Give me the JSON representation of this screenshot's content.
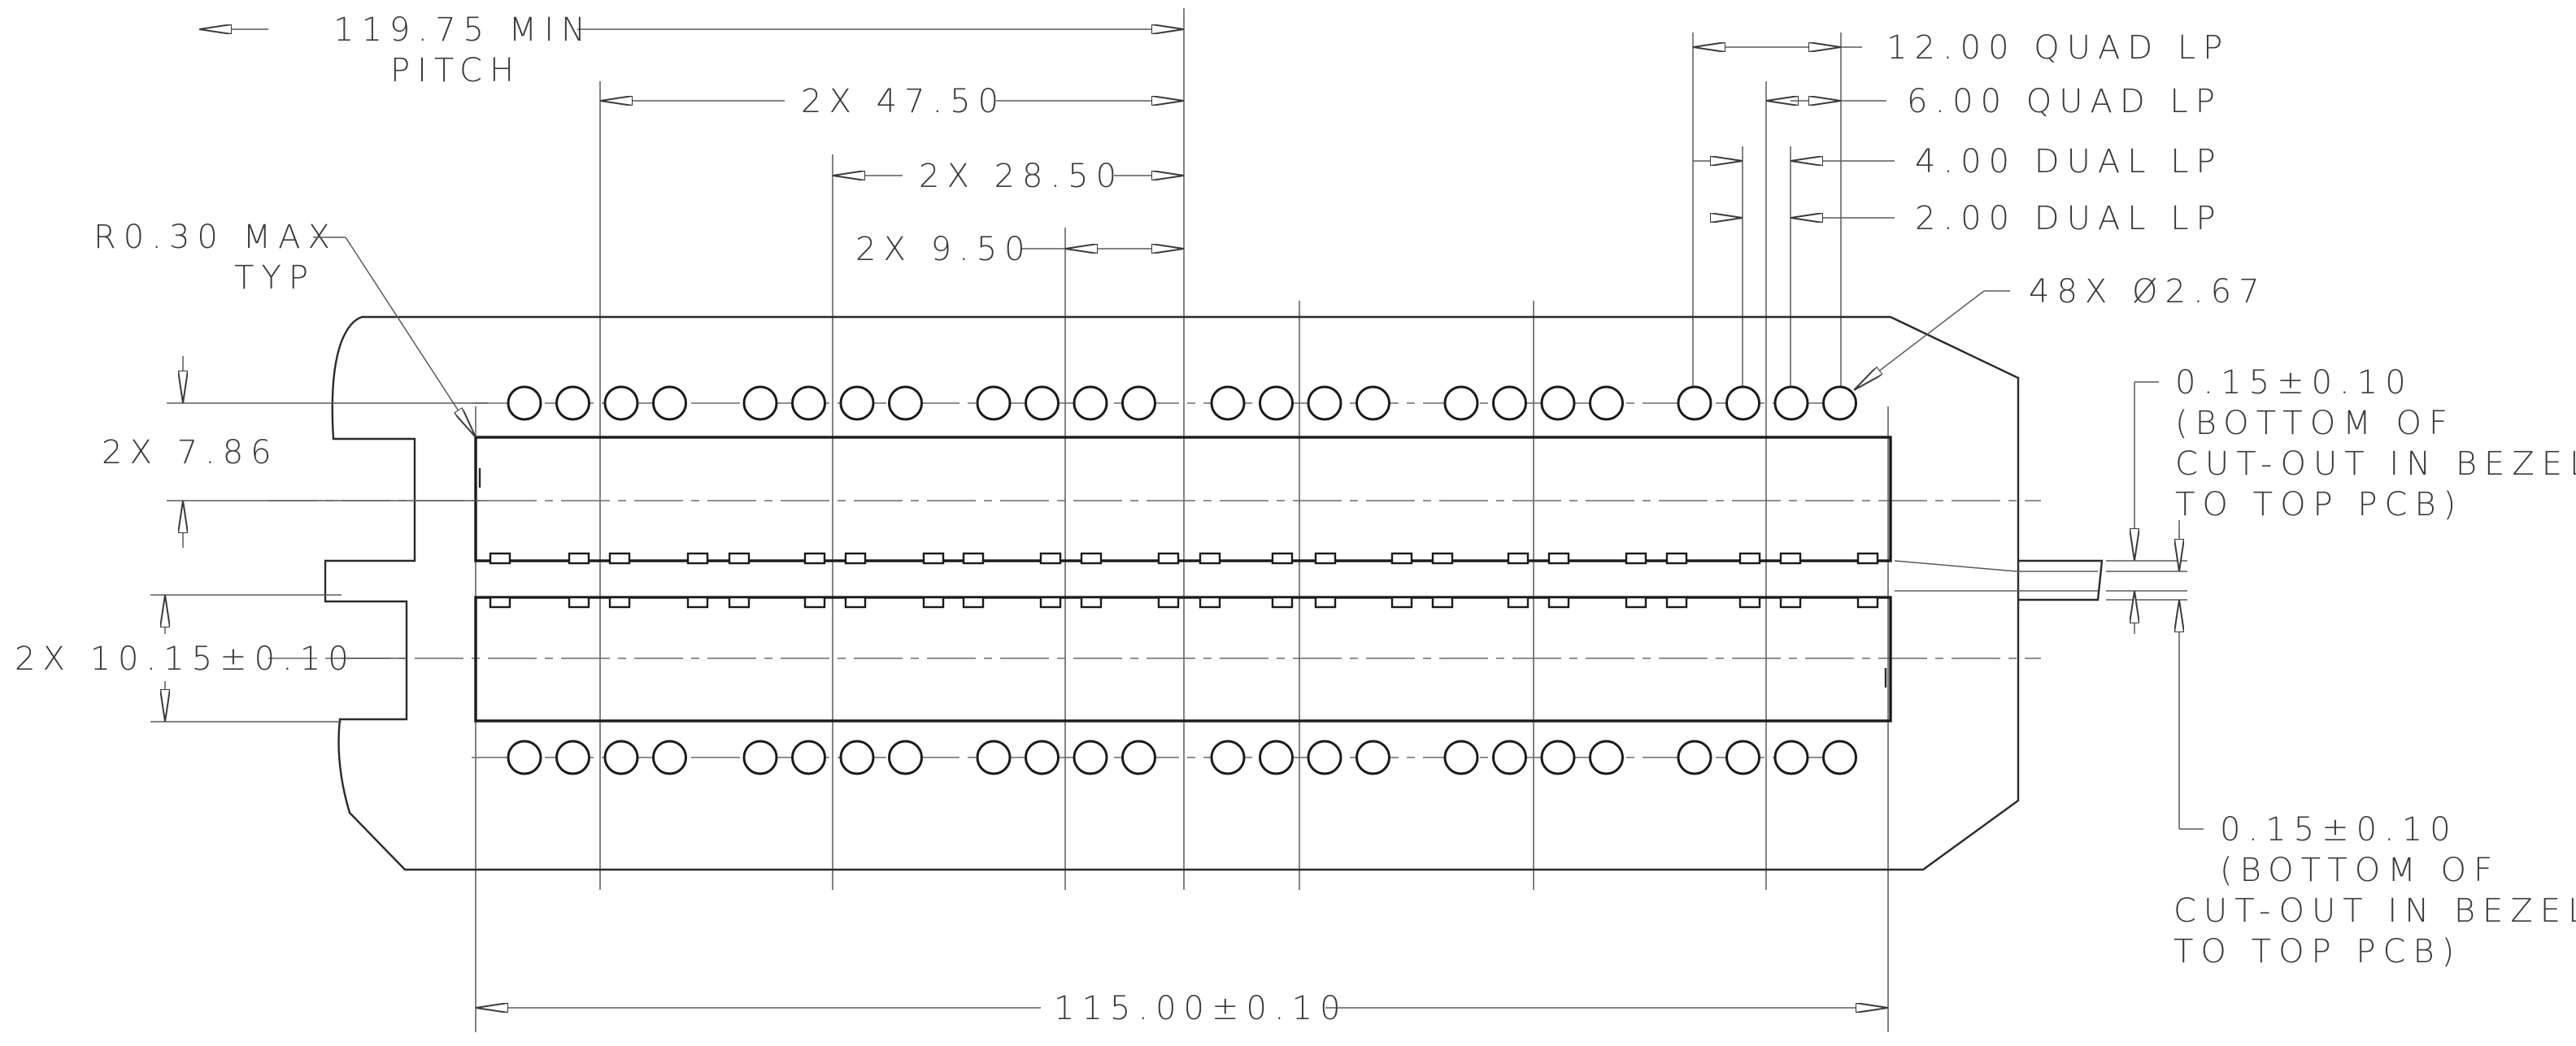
{
  "drawing": {
    "labels": {
      "pitch_line1": "119.75 MIN",
      "pitch_line2": "PITCH",
      "dim_47_50": "2X 47.50",
      "dim_28_50": "2X 28.50",
      "dim_9_50": "2X 9.50",
      "radius_line1": "R0.30 MAX",
      "radius_line2": "TYP",
      "dim_7_86": "2X 7.86",
      "dim_10_15": "2X 10.15±0.10",
      "quad_12": "12.00 QUAD LP",
      "quad_6": "6.00 QUAD LP",
      "dual_4": "4.00 DUAL LP",
      "dual_2": "2.00 DUAL LP",
      "holes": "48X Ø2.67",
      "bezel_top_line1": "0.15±0.10",
      "bezel_top_line2": "(BOTTOM OF",
      "bezel_top_line3": "CUT-OUT IN BEZEL",
      "bezel_top_line4": "TO TOP PCB)",
      "bezel_bot_line1": "0.15±0.10",
      "bezel_bot_line2": "(BOTTOM OF",
      "bezel_bot_line3": "CUT-OUT IN BEZEL",
      "bezel_bot_line4": "TO TOP PCB)",
      "overall_width": "115.00±0.10"
    }
  }
}
